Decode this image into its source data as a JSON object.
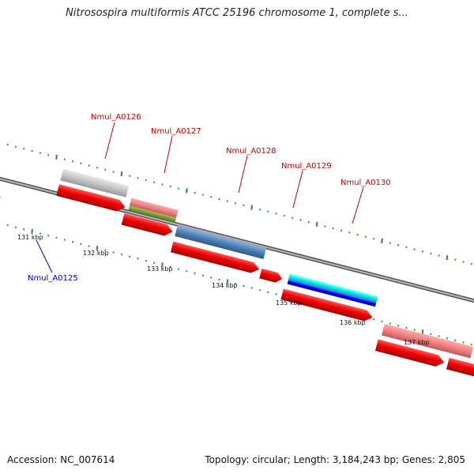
{
  "title": "Nitrosospira multiformis ATCC 25196 chromosome 1, complete s...",
  "footer": {
    "accession": "Accession: NC_007614",
    "summary": "Topology: circular; Length: 3,184,243 bp; Genes: 2,805"
  },
  "colors": {
    "backbone": "#808080",
    "ticks": "#2e8b2e",
    "label_plus": "#cc0000",
    "label_minus": "#0000cc",
    "cds_red": "#ee1111"
  },
  "kbp_labels": [
    "131 kbp",
    "132 kbp",
    "133 kbp",
    "134 kbp",
    "135 kbp",
    "136 kbp",
    "137 kbp"
  ],
  "gene_labels": [
    {
      "name": "Nmul_A0126",
      "color": "#cc0000"
    },
    {
      "name": "Nmul_A0127",
      "color": "#cc0000"
    },
    {
      "name": "Nmul_A0128",
      "color": "#cc0000"
    },
    {
      "name": "Nmul_A0129",
      "color": "#cc0000"
    },
    {
      "name": "Nmul_A0130",
      "color": "#cc0000"
    },
    {
      "name": "Nmul_A0125",
      "color": "#0000cc"
    }
  ]
}
